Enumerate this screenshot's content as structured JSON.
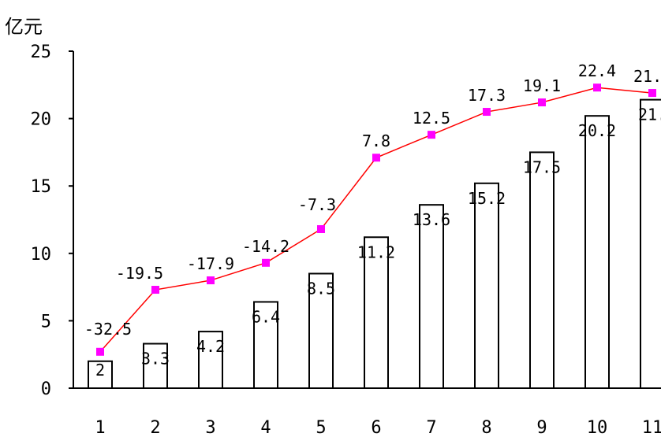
{
  "chart_data": {
    "type": "bar",
    "ylabel": "亿元",
    "ylim": [
      0,
      25
    ],
    "yticks": [
      0,
      5,
      10,
      15,
      20,
      25
    ],
    "categories": [
      "1",
      "2",
      "3",
      "4",
      "5",
      "6",
      "7",
      "8",
      "9",
      "10",
      "11"
    ],
    "bar_labels": [
      "2",
      "3.3",
      "4.2",
      "6.4",
      "8.5",
      "11.2",
      "13.6",
      "15.2",
      "17.5",
      "20.2",
      "21."
    ],
    "line_labels": [
      "-32.5",
      "-19.5",
      "-17.9",
      "-14.2",
      "-7.3",
      "7.8",
      "12.5",
      "17.3",
      "19.1",
      "22.4",
      "21."
    ],
    "series": [
      {
        "type": "bar",
        "values": [
          2,
          3.3,
          4.2,
          6.4,
          8.5,
          11.2,
          13.6,
          15.2,
          17.5,
          20.2,
          21.4
        ]
      },
      {
        "type": "line",
        "values": [
          2.7,
          7.3,
          8.0,
          9.3,
          11.8,
          17.1,
          18.8,
          20.5,
          21.2,
          22.3,
          21.9
        ]
      }
    ],
    "grid": false,
    "colors": {
      "bar_fill": "#ffffff",
      "bar_stroke": "#000000",
      "line": "#ff0000",
      "marker": "#ff00ff"
    }
  }
}
